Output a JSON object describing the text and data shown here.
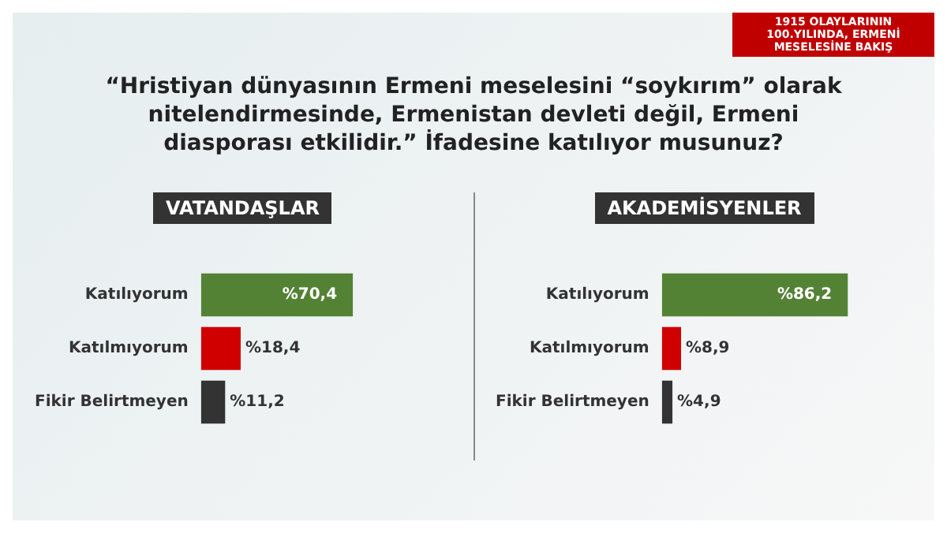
{
  "chart_data": [
    {
      "type": "bar",
      "orientation": "horizontal",
      "title": "VATANDAŞLAR",
      "annotations": [
        "1915 OLAYLARININ 100.YILINDA, ERMENİ MESELESİNE BAKIŞ",
        "“Hristiyan dünyasının Ermeni meselesini “soykırım” olarak nitelendirmesinde, Ermenistan devleti değil, Ermeni diasporası etkilidir.” İfadesine katılıyor musunuz?"
      ],
      "categories": [
        "Katılıyorum",
        "Katılmıyorum",
        "Fikir Belirtmeyen"
      ],
      "values": [
        70.4,
        18.4,
        11.2
      ],
      "colors": [
        "#548235",
        "#d00000",
        "#333333"
      ],
      "value_labels": [
        "%70,4",
        "%18,4",
        "%11,2"
      ],
      "grid": false,
      "legend": false
    },
    {
      "type": "bar",
      "orientation": "horizontal",
      "title": "AKADEMİSYENLER",
      "categories": [
        "Katılıyorum",
        "Katılmıyorum",
        "Fikir Belirtmeyen"
      ],
      "values": [
        86.2,
        8.9,
        4.9
      ],
      "colors": [
        "#548235",
        "#d00000",
        "#333333"
      ],
      "value_labels": [
        "%86,2",
        "%8,9",
        "%4,9"
      ],
      "grid": false,
      "legend": false
    }
  ]
}
